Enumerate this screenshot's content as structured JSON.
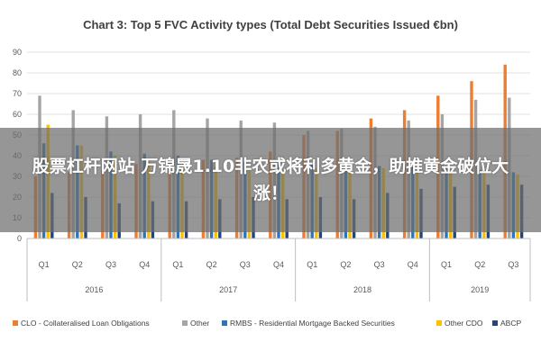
{
  "chart_data": {
    "type": "bar",
    "title": "Chart 3: Top 5 FVC Activity types (Total Debt Securities Issued €bn)",
    "ylim": [
      0,
      90
    ],
    "yticks": [
      0,
      10,
      20,
      30,
      40,
      50,
      60,
      70,
      80,
      90
    ],
    "grid": true,
    "legend_position": "bottom",
    "categories": [
      "Q1",
      "Q2",
      "Q3",
      "Q4",
      "Q1",
      "Q2",
      "Q3",
      "Q4",
      "Q1",
      "Q2",
      "Q3",
      "Q4",
      "Q1",
      "Q2",
      "Q3"
    ],
    "years": [
      {
        "label": "2016",
        "count": 4
      },
      {
        "label": "2017",
        "count": 4
      },
      {
        "label": "2018",
        "count": 4
      },
      {
        "label": "2019",
        "count": 3
      }
    ],
    "series": [
      {
        "name": "CLO - Collateralised Loan Obligations",
        "color": "#ED7D31",
        "values": [
          30,
          32,
          33,
          36,
          37,
          38,
          39,
          42,
          50,
          52,
          58,
          62,
          69,
          76,
          84
        ]
      },
      {
        "name": "Other",
        "color": "#A5A5A5",
        "values": [
          69,
          62,
          59,
          60,
          62,
          58,
          57,
          56,
          52,
          53,
          54,
          57,
          60,
          67,
          68
        ]
      },
      {
        "name": "RMBS - Residential Mortgage Backed Securities",
        "color": "#2E75B6",
        "values": [
          46,
          45,
          42,
          41,
          40,
          38,
          37,
          37,
          36,
          35,
          35,
          35,
          34,
          33,
          32
        ]
      },
      {
        "name": "Other CDO",
        "color": "#FFC000",
        "values": [
          55,
          45,
          40,
          38,
          36,
          35,
          33,
          33,
          34,
          33,
          34,
          33,
          32,
          33,
          31
        ]
      },
      {
        "name": "ABCP",
        "color": "#264478",
        "values": [
          22,
          20,
          17,
          18,
          18,
          19,
          20,
          19,
          20,
          19,
          22,
          24,
          25,
          26,
          26
        ]
      }
    ]
  },
  "overlay": {
    "text": "股票杠杆网站 万锦晟1.10非农或将利多黄金，助推黄金破位大涨！"
  }
}
